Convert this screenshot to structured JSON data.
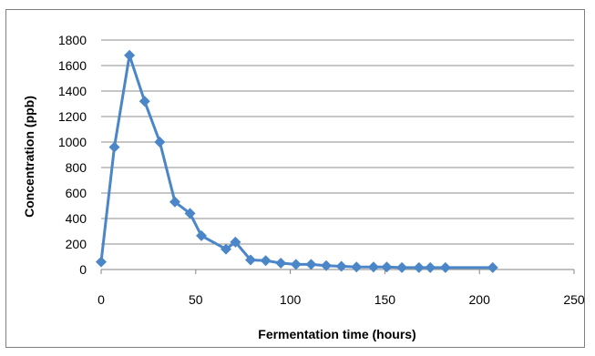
{
  "chart_data": {
    "type": "line",
    "title": "",
    "xlabel": "Fermentation time (hours)",
    "ylabel": "Concentration (ppb)",
    "xlim": [
      0,
      250
    ],
    "ylim": [
      0,
      1800
    ],
    "xticks": [
      0,
      50,
      100,
      150,
      200,
      250
    ],
    "yticks": [
      0,
      200,
      400,
      600,
      800,
      1000,
      1200,
      1400,
      1600,
      1800
    ],
    "grid": "horizontal",
    "legend": "none",
    "series": [
      {
        "color": "#4a86c8",
        "marker": "diamond",
        "points": [
          [
            0,
            60
          ],
          [
            7,
            960
          ],
          [
            15,
            1680
          ],
          [
            23,
            1320
          ],
          [
            31,
            1000
          ],
          [
            39,
            530
          ],
          [
            47,
            440
          ],
          [
            53,
            265
          ],
          [
            66,
            160
          ],
          [
            71,
            215
          ],
          [
            79,
            75
          ],
          [
            87,
            70
          ],
          [
            95,
            50
          ],
          [
            103,
            40
          ],
          [
            111,
            40
          ],
          [
            119,
            30
          ],
          [
            127,
            25
          ],
          [
            135,
            20
          ],
          [
            144,
            20
          ],
          [
            151,
            20
          ],
          [
            159,
            15
          ],
          [
            168,
            15
          ],
          [
            174,
            15
          ],
          [
            182,
            15
          ],
          [
            207,
            15
          ]
        ]
      }
    ]
  }
}
